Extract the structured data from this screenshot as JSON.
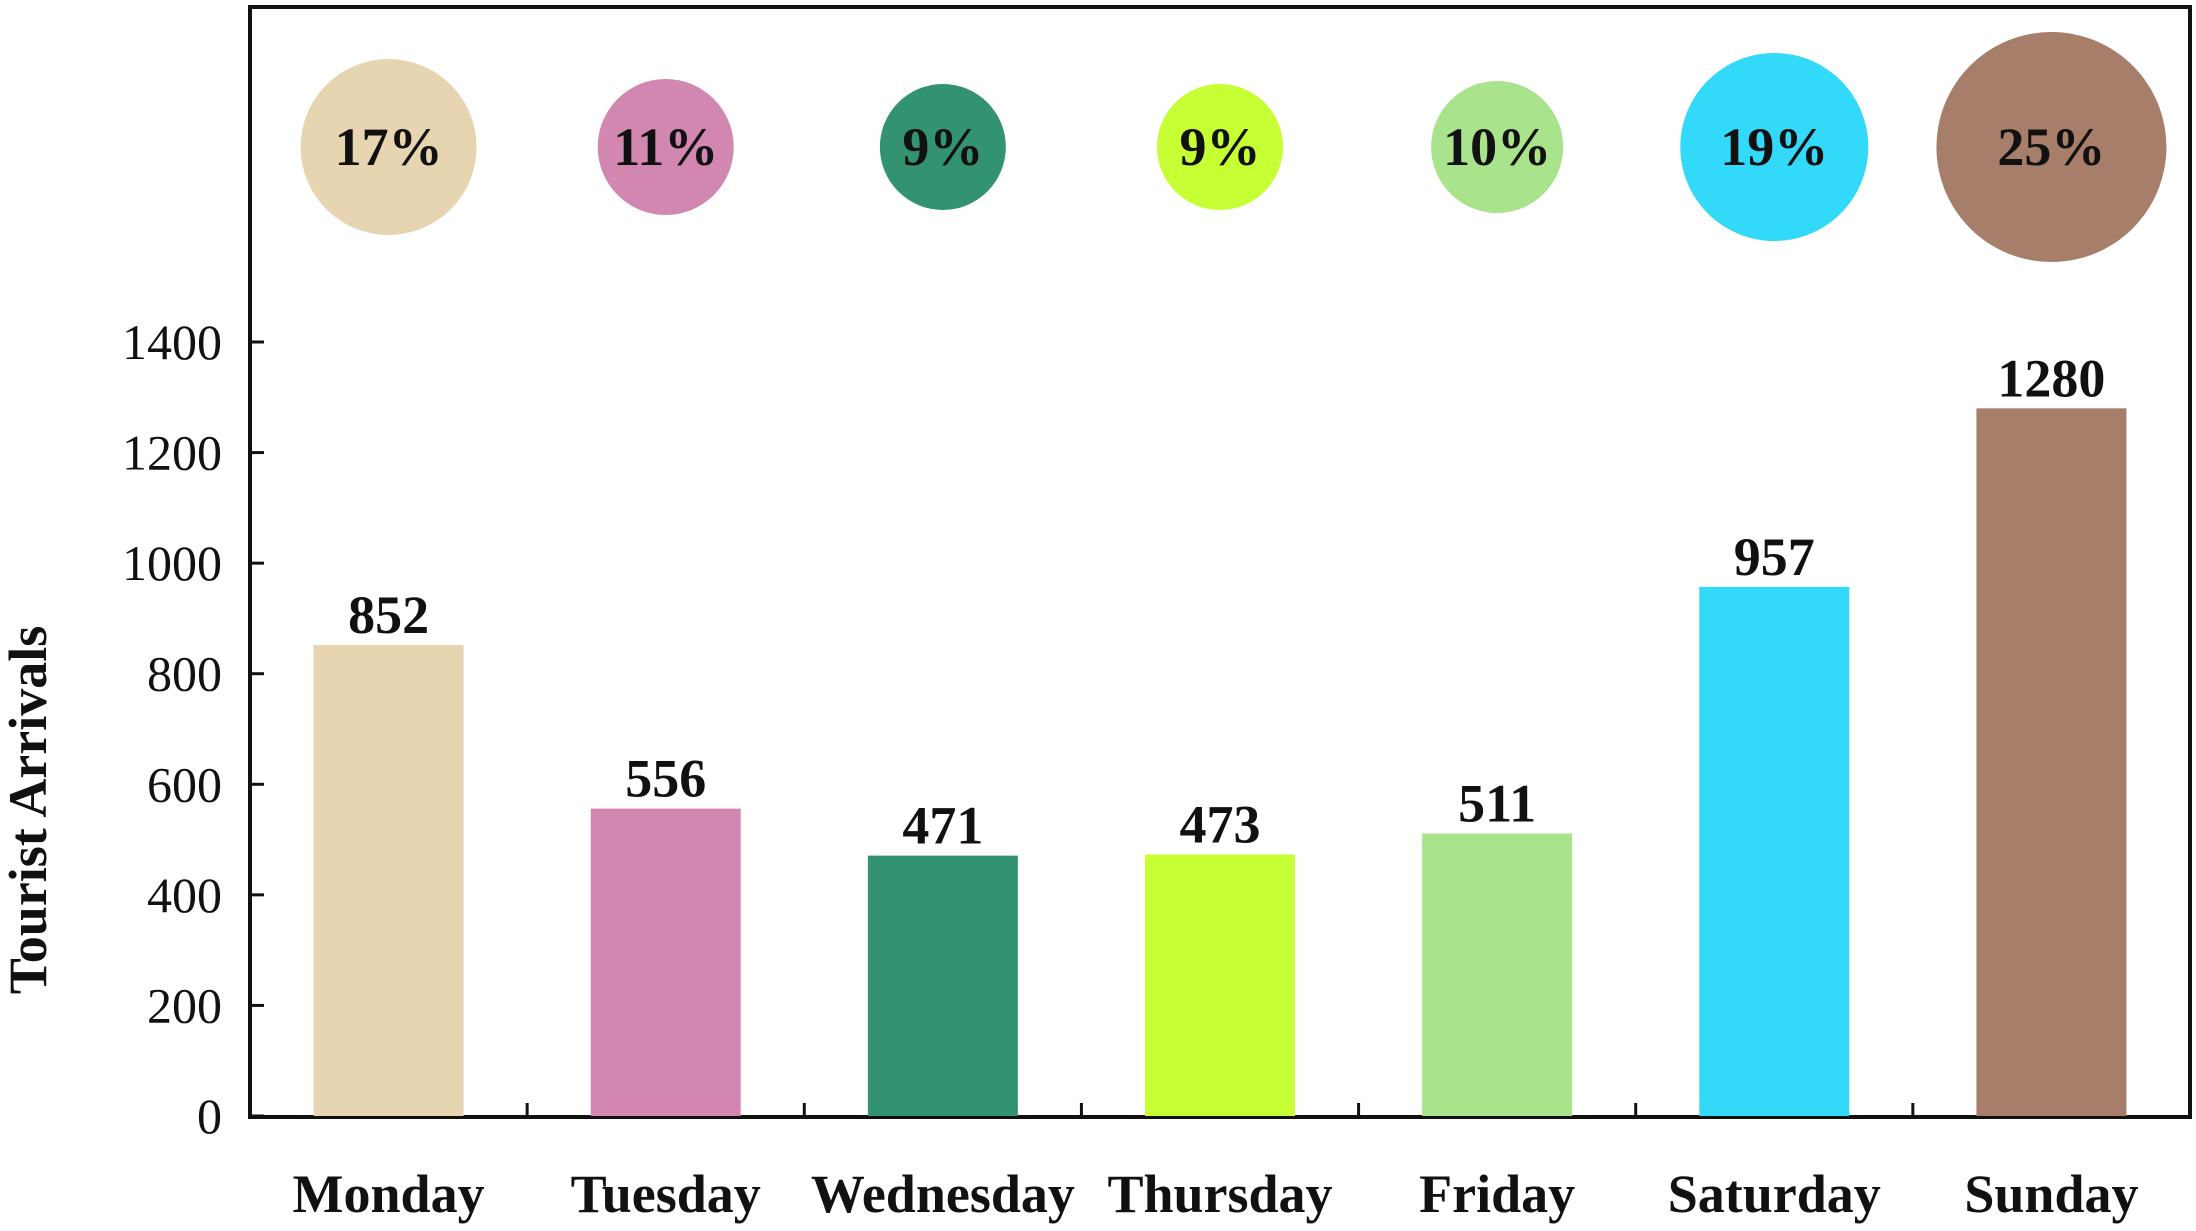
{
  "chart_data": {
    "type": "bar",
    "title": "",
    "xlabel": "",
    "ylabel": "Tourist Arrivals",
    "ylim": [
      0,
      1400
    ],
    "yticks": [
      0,
      200,
      400,
      600,
      800,
      1000,
      1200,
      1400
    ],
    "categories": [
      "Monday",
      "Tuesday",
      "Wednesday",
      "Thursday",
      "Friday",
      "Saturday",
      "Sunday"
    ],
    "values": [
      852,
      556,
      471,
      473,
      511,
      957,
      1280
    ],
    "value_labels": [
      "852",
      "556",
      "471",
      "473",
      "511",
      "957",
      "1280"
    ],
    "shares": [
      17,
      11,
      9,
      9,
      10,
      19,
      25
    ],
    "share_labels": [
      "17%",
      "11%",
      "9%",
      "9%",
      "10%",
      "19%",
      "25%"
    ],
    "colors": [
      "#e7d4b1",
      "#d287b1",
      "#339370",
      "#c6ff33",
      "#a9e38b",
      "#33d9f9",
      "#a67e6a"
    ],
    "grid": false,
    "legend": "none"
  }
}
